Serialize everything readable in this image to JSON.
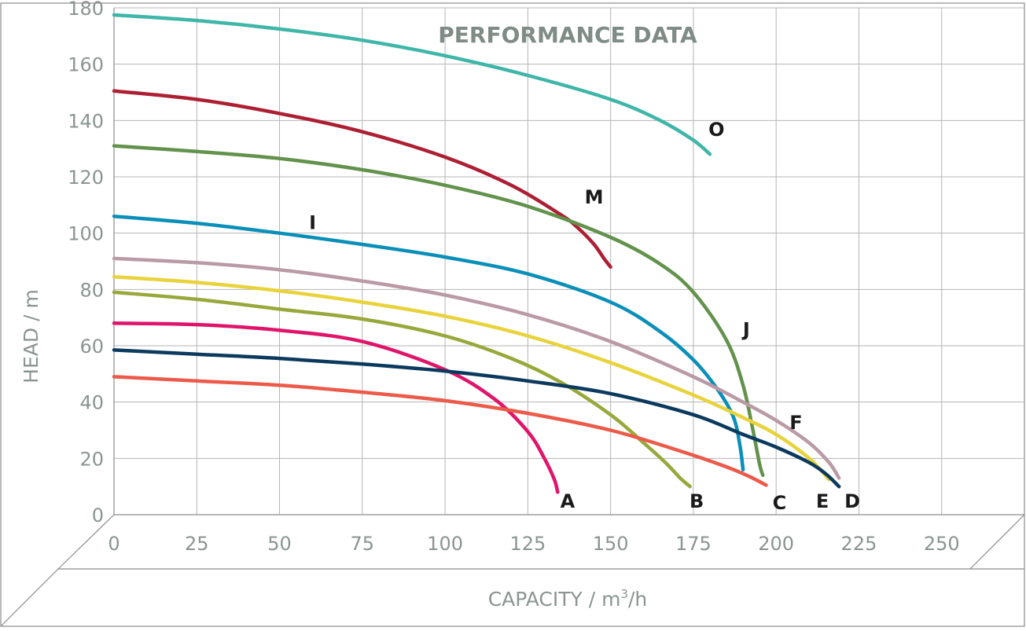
{
  "chart_data": {
    "type": "line",
    "title": "PERFORMANCE DATA",
    "xlabel_main": "CAPACITY / m",
    "xlabel_sup": "3",
    "xlabel_tail": "/h",
    "ylabel": "HEAD / m",
    "xlim": [
      0,
      275
    ],
    "ylim": [
      0,
      180
    ],
    "xticks": [
      "0",
      "25",
      "50",
      "75",
      "100",
      "125",
      "150",
      "175",
      "200",
      "225",
      "250"
    ],
    "yticks": [
      "0",
      "20",
      "40",
      "60",
      "80",
      "100",
      "120",
      "140",
      "160",
      "180"
    ],
    "grid": true,
    "series": [
      {
        "name": "O",
        "color": "#3fb6a8",
        "x": [
          0,
          25,
          50,
          75,
          100,
          125,
          150,
          165,
          175,
          180
        ],
        "y": [
          177.5,
          175.5,
          172.5,
          168.5,
          163,
          156,
          147.5,
          140,
          133,
          128
        ]
      },
      {
        "name": "M",
        "color": "#ad1f33",
        "x": [
          0,
          25,
          50,
          75,
          100,
          120,
          135,
          140,
          145,
          148,
          150
        ],
        "y": [
          150.5,
          147.5,
          142.5,
          136,
          127,
          117,
          106.5,
          102,
          96,
          91,
          88
        ]
      },
      {
        "name": "J",
        "color": "#62924c",
        "x": [
          0,
          25,
          50,
          75,
          100,
          125,
          150,
          165,
          175,
          185,
          190,
          193,
          195,
          196
        ],
        "y": [
          131,
          129,
          126.5,
          122.5,
          117,
          109.5,
          98.5,
          89,
          79,
          62,
          46,
          30,
          18,
          14
        ]
      },
      {
        "name": "I",
        "color": "#0a8fb8",
        "x": [
          0,
          25,
          50,
          75,
          100,
          125,
          150,
          165,
          175,
          182,
          187,
          189,
          190
        ],
        "y": [
          106,
          103.5,
          100,
          96,
          91.5,
          85.5,
          75.5,
          65,
          55,
          45,
          35,
          25,
          16
        ]
      },
      {
        "name": "F",
        "color": "#b99aa6",
        "x": [
          0,
          25,
          50,
          75,
          100,
          125,
          150,
          175,
          190,
          200,
          210,
          216,
          219
        ],
        "y": [
          91,
          89.5,
          87,
          83,
          78,
          71,
          61.5,
          49,
          40,
          33.5,
          25.5,
          18.5,
          13
        ]
      },
      {
        "name": "E",
        "color": "#e8d33c",
        "x": [
          0,
          25,
          50,
          75,
          100,
          125,
          150,
          175,
          190,
          200,
          210,
          216
        ],
        "y": [
          84.5,
          82.5,
          79.5,
          75.5,
          70.5,
          63.5,
          54,
          42.5,
          34.5,
          28.5,
          20,
          12.5
        ]
      },
      {
        "name": "B",
        "color": "#98a83a",
        "x": [
          0,
          25,
          50,
          75,
          100,
          120,
          135,
          150,
          160,
          167,
          171,
          174
        ],
        "y": [
          79,
          76.5,
          73,
          69.5,
          63.5,
          55.5,
          47,
          35.5,
          25.5,
          18,
          13,
          10
        ]
      },
      {
        "name": "A",
        "color": "#e0146a",
        "x": [
          0,
          25,
          50,
          75,
          100,
          115,
          125,
          130,
          133,
          134
        ],
        "y": [
          68,
          67.5,
          65.5,
          61.5,
          51.5,
          41,
          29.5,
          20,
          12.5,
          8
        ]
      },
      {
        "name": "D",
        "color": "#0b3a5e",
        "x": [
          0,
          25,
          50,
          75,
          100,
          125,
          150,
          175,
          190,
          200,
          210,
          215,
          219
        ],
        "y": [
          58.5,
          57,
          55.5,
          53.5,
          51,
          47.5,
          43,
          35.5,
          28.5,
          24,
          18.5,
          14.5,
          10
        ]
      },
      {
        "name": "C",
        "color": "#ec5a4a",
        "x": [
          0,
          25,
          50,
          75,
          100,
          125,
          150,
          170,
          185,
          192,
          197
        ],
        "y": [
          49,
          47.5,
          46,
          43.5,
          40.5,
          36,
          30,
          23,
          17,
          13.5,
          10.5
        ]
      }
    ],
    "labels": [
      {
        "text": "O",
        "x": 182,
        "y": 137
      },
      {
        "text": "M",
        "x": 145,
        "y": 113
      },
      {
        "text": "I",
        "x": 60,
        "y": 104
      },
      {
        "text": "J",
        "x": 191,
        "y": 66
      },
      {
        "text": "F",
        "x": 206,
        "y": 33
      },
      {
        "text": "A",
        "x": 137,
        "y": 5
      },
      {
        "text": "B",
        "x": 176,
        "y": 5
      },
      {
        "text": "C",
        "x": 201,
        "y": 4.5
      },
      {
        "text": "E",
        "x": 214,
        "y": 5
      },
      {
        "text": "D",
        "x": 223,
        "y": 5
      }
    ]
  }
}
